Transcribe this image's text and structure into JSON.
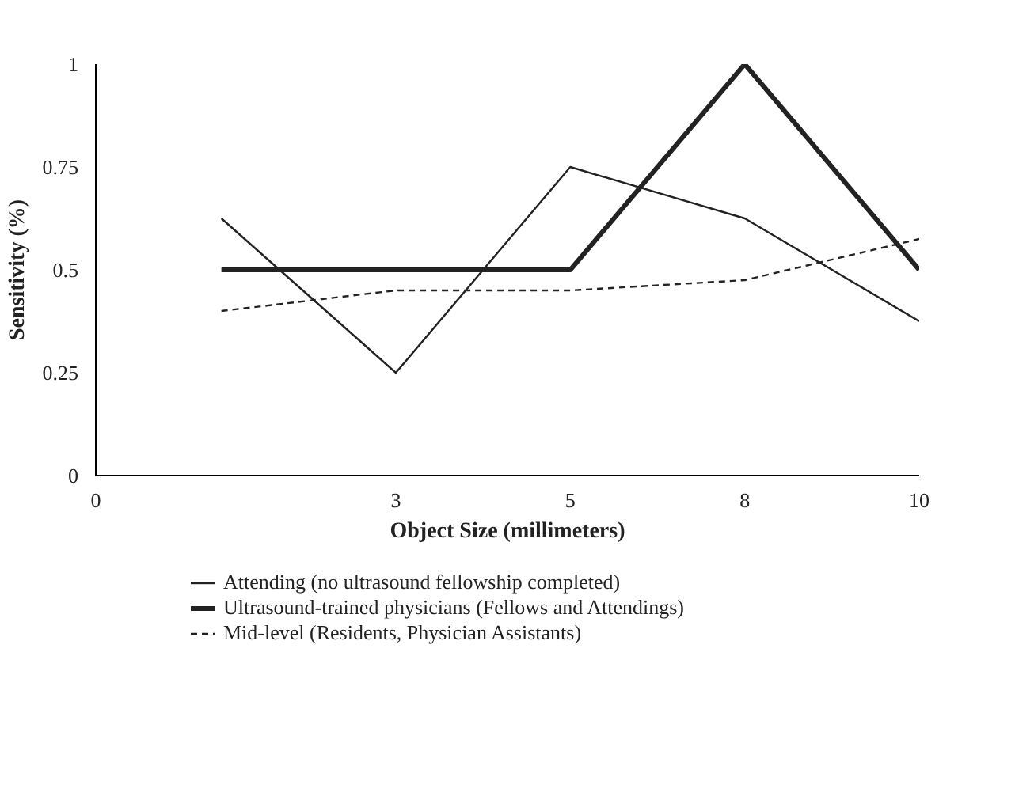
{
  "chart_data": {
    "type": "line",
    "xlabel": "Object Size (millimeters)",
    "ylabel": "Sensitivity (%)",
    "categories": [
      null,
      "3",
      "5",
      "8",
      "10"
    ],
    "annotations": [
      "0"
    ],
    "ylim": [
      0,
      1
    ],
    "yticks": [
      0,
      0.25,
      0.5,
      0.75,
      1
    ],
    "series": [
      {
        "name": "Attending (no ultrasound fellowship completed)",
        "color": "#222222",
        "values": [
          0.625,
          0.25,
          0.75,
          0.625,
          0.375
        ],
        "line_style": "solid"
      },
      {
        "name": "Ultrasound-trained physicians (Fellows and Attendings)",
        "color": "#222222",
        "values": [
          0.5,
          0.5,
          0.5,
          1,
          0.5
        ],
        "line_style": "solid"
      },
      {
        "name": "Mid-level (Residents, Physician Assistants)",
        "color": "#222222",
        "values": [
          0.4,
          0.45,
          0.45,
          0.475,
          0.575
        ],
        "line_style": "dashed"
      }
    ],
    "grid": false,
    "legend": "bottom"
  }
}
